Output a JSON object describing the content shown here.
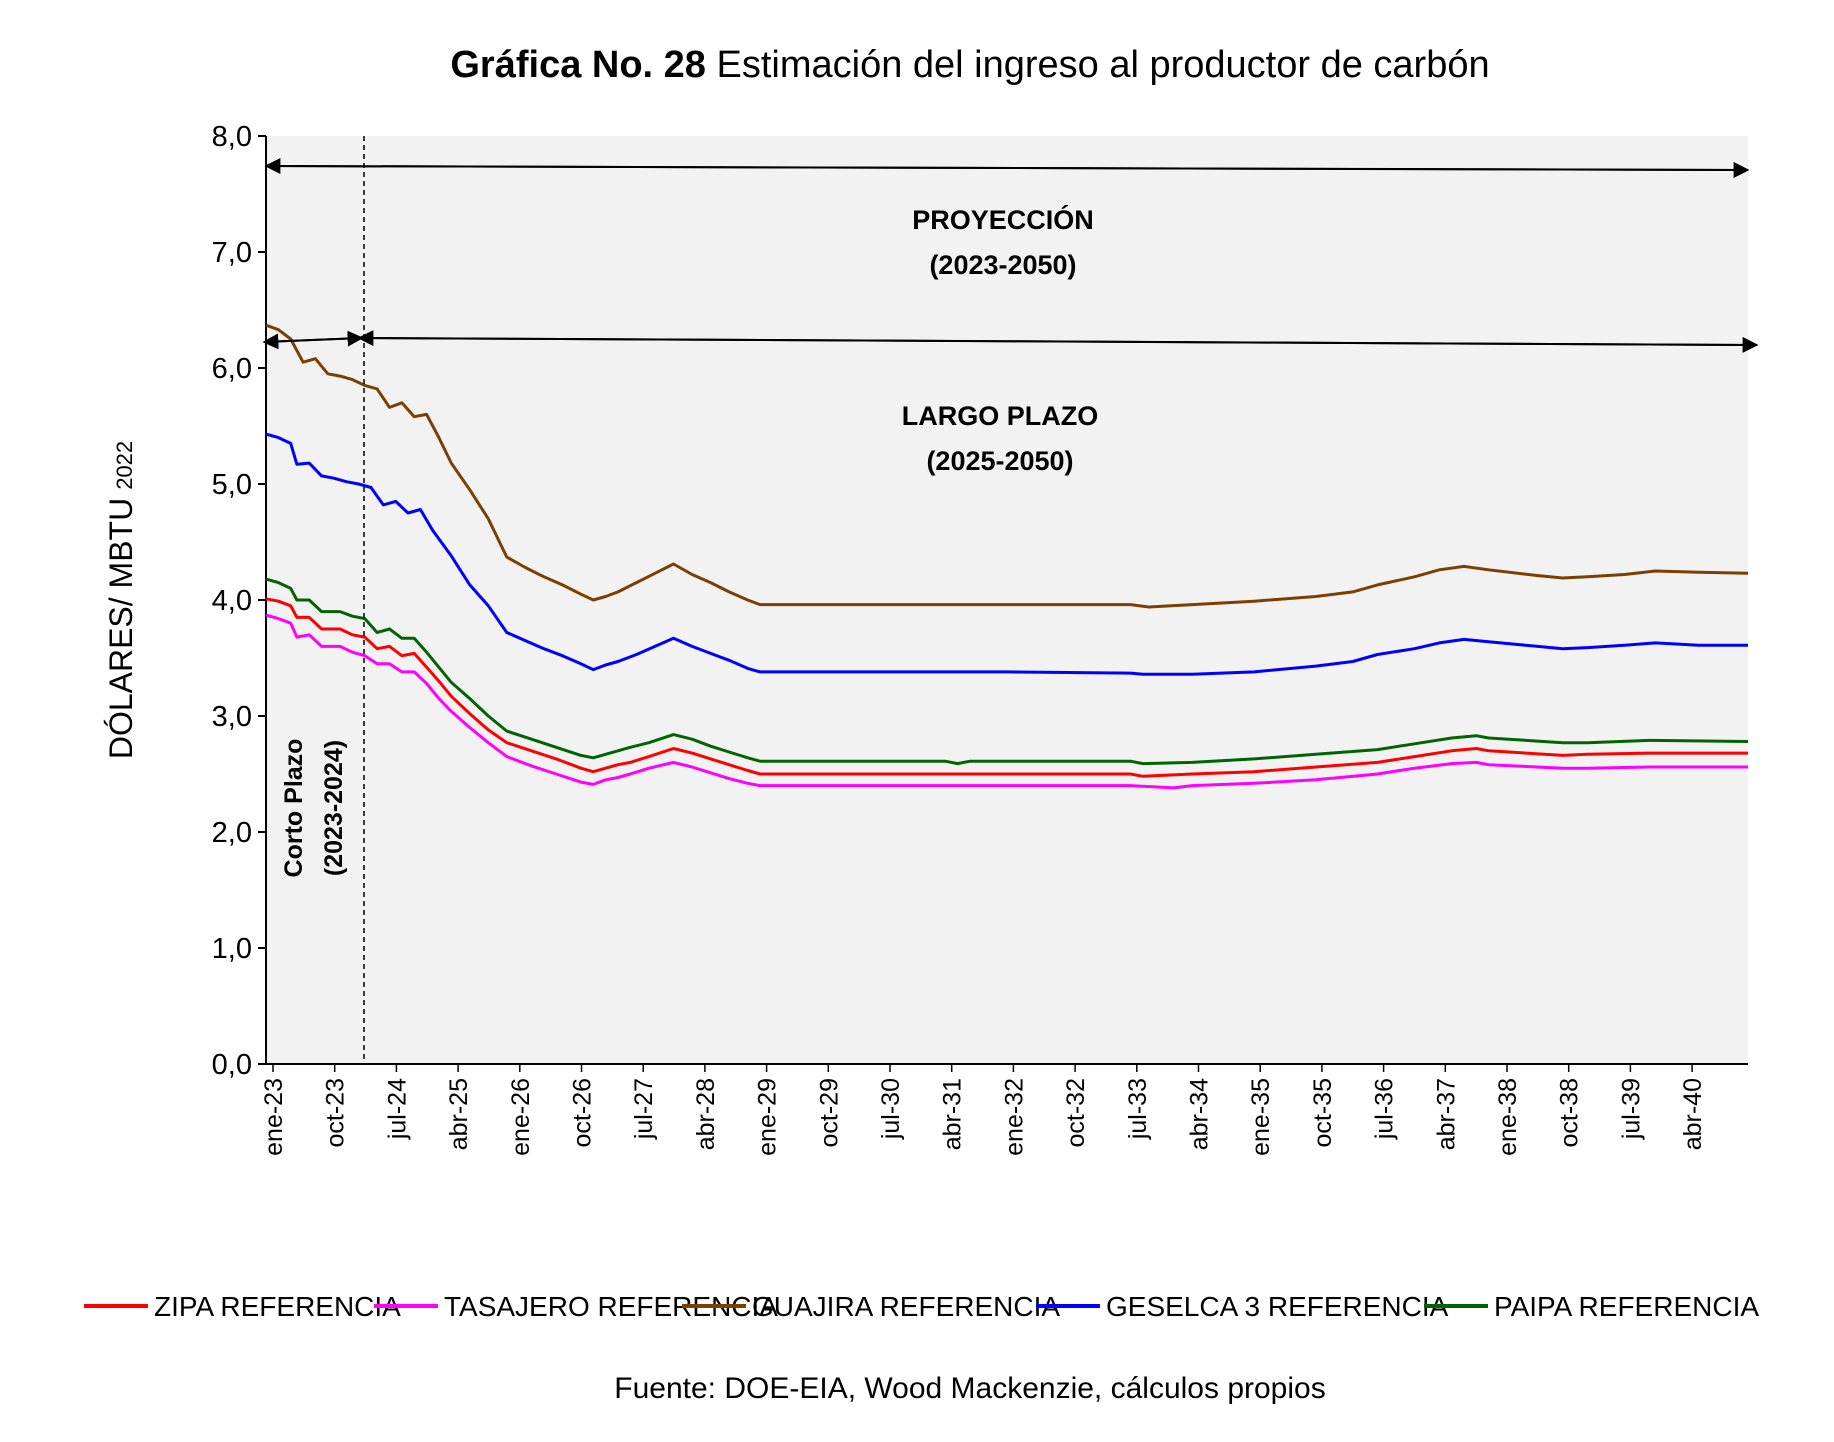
{
  "title": {
    "number": "Gráfica No. 28",
    "text": "Estimación del ingreso al productor de carbón"
  },
  "source": "Fuente: DOE-EIA, Wood Mackenzie, cálculos propios",
  "annotations": {
    "proyeccion_title": "PROYECCIÓN",
    "proyeccion_years": "(2023-2050)",
    "largo_title": "LARGO PLAZO",
    "largo_years": "(2025-2050)",
    "corto_title": "Corto Plazo",
    "corto_years": "(2023-2024)"
  },
  "chart_data": {
    "type": "line",
    "ylabel_main": "DÓLARES/ MBTU",
    "ylabel_sub": "2022",
    "ylim": [
      0,
      8
    ],
    "yticks": [
      "0,0",
      "1,0",
      "2,0",
      "3,0",
      "4,0",
      "5,0",
      "6,0",
      "7,0",
      "8,0"
    ],
    "x_tick_labels": [
      "ene-23",
      "oct-23",
      "jul-24",
      "abr-25",
      "ene-26",
      "oct-26",
      "jul-27",
      "abr-28",
      "ene-29",
      "oct-29",
      "jul-30",
      "abr-31",
      "ene-32",
      "oct-32",
      "jul-33",
      "abr-34",
      "ene-35",
      "oct-35",
      "jul-36",
      "abr-37",
      "ene-38",
      "oct-38",
      "jul-39",
      "abr-40"
    ],
    "grid": false,
    "legend_position": "bottom",
    "series": [
      {
        "name": "ZIPA REFERENCIA",
        "color": "#ff0000",
        "points": [
          [
            0,
            4.01
          ],
          [
            2,
            3.99
          ],
          [
            4,
            3.95
          ],
          [
            5,
            3.85
          ],
          [
            7,
            3.85
          ],
          [
            9,
            3.75
          ],
          [
            12,
            3.75
          ],
          [
            14,
            3.7
          ],
          [
            16,
            3.68
          ],
          [
            18,
            3.58
          ],
          [
            20,
            3.6
          ],
          [
            22,
            3.52
          ],
          [
            24,
            3.54
          ],
          [
            26,
            3.42
          ],
          [
            28,
            3.3
          ],
          [
            30,
            3.17
          ],
          [
            33,
            3.02
          ],
          [
            36,
            2.88
          ],
          [
            39,
            2.77
          ],
          [
            43,
            2.7
          ],
          [
            47,
            2.63
          ],
          [
            51,
            2.55
          ],
          [
            53,
            2.52
          ],
          [
            55,
            2.55
          ],
          [
            57,
            2.58
          ],
          [
            59,
            2.6
          ],
          [
            62,
            2.65
          ],
          [
            66,
            2.72
          ],
          [
            69,
            2.68
          ],
          [
            72,
            2.63
          ],
          [
            75,
            2.58
          ],
          [
            78,
            2.53
          ],
          [
            80,
            2.5
          ],
          [
            82,
            2.5
          ],
          [
            100,
            2.5
          ],
          [
            110,
            2.5
          ],
          [
            120,
            2.5
          ],
          [
            130,
            2.5
          ],
          [
            140,
            2.5
          ],
          [
            142,
            2.48
          ],
          [
            150,
            2.5
          ],
          [
            160,
            2.52
          ],
          [
            170,
            2.56
          ],
          [
            180,
            2.6
          ],
          [
            186,
            2.65
          ],
          [
            192,
            2.7
          ],
          [
            196,
            2.72
          ],
          [
            198,
            2.7
          ],
          [
            210,
            2.66
          ],
          [
            214,
            2.67
          ],
          [
            224,
            2.68
          ],
          [
            240,
            2.68
          ]
        ]
      },
      {
        "name": "TASAJERO REFERENCIA",
        "color": "#ff00ff",
        "points": [
          [
            0,
            3.87
          ],
          [
            2,
            3.84
          ],
          [
            4,
            3.8
          ],
          [
            5,
            3.68
          ],
          [
            7,
            3.7
          ],
          [
            9,
            3.6
          ],
          [
            12,
            3.6
          ],
          [
            14,
            3.55
          ],
          [
            16,
            3.52
          ],
          [
            18,
            3.45
          ],
          [
            20,
            3.45
          ],
          [
            22,
            3.38
          ],
          [
            24,
            3.38
          ],
          [
            26,
            3.28
          ],
          [
            28,
            3.15
          ],
          [
            30,
            3.04
          ],
          [
            33,
            2.9
          ],
          [
            36,
            2.77
          ],
          [
            39,
            2.65
          ],
          [
            43,
            2.57
          ],
          [
            47,
            2.5
          ],
          [
            51,
            2.43
          ],
          [
            53,
            2.41
          ],
          [
            55,
            2.45
          ],
          [
            57,
            2.47
          ],
          [
            59,
            2.5
          ],
          [
            62,
            2.55
          ],
          [
            66,
            2.6
          ],
          [
            69,
            2.56
          ],
          [
            72,
            2.51
          ],
          [
            75,
            2.46
          ],
          [
            78,
            2.42
          ],
          [
            80,
            2.4
          ],
          [
            82,
            2.4
          ],
          [
            100,
            2.4
          ],
          [
            120,
            2.4
          ],
          [
            140,
            2.4
          ],
          [
            147,
            2.38
          ],
          [
            150,
            2.4
          ],
          [
            160,
            2.42
          ],
          [
            170,
            2.45
          ],
          [
            180,
            2.5
          ],
          [
            186,
            2.55
          ],
          [
            192,
            2.59
          ],
          [
            196,
            2.6
          ],
          [
            198,
            2.58
          ],
          [
            210,
            2.55
          ],
          [
            214,
            2.55
          ],
          [
            224,
            2.56
          ],
          [
            240,
            2.56
          ]
        ]
      },
      {
        "name": "GUAJIRA REFERENCIA",
        "color": "#7b3f00",
        "points": [
          [
            0,
            6.37
          ],
          [
            2,
            6.33
          ],
          [
            4,
            6.25
          ],
          [
            6,
            6.05
          ],
          [
            8,
            6.08
          ],
          [
            10,
            5.95
          ],
          [
            12,
            5.93
          ],
          [
            14,
            5.9
          ],
          [
            16,
            5.85
          ],
          [
            18,
            5.82
          ],
          [
            20,
            5.66
          ],
          [
            22,
            5.7
          ],
          [
            24,
            5.58
          ],
          [
            26,
            5.6
          ],
          [
            28,
            5.4
          ],
          [
            30,
            5.18
          ],
          [
            33,
            4.95
          ],
          [
            36,
            4.7
          ],
          [
            39,
            4.37
          ],
          [
            42,
            4.28
          ],
          [
            45,
            4.2
          ],
          [
            48,
            4.13
          ],
          [
            51,
            4.05
          ],
          [
            53,
            4.0
          ],
          [
            55,
            4.03
          ],
          [
            57,
            4.07
          ],
          [
            60,
            4.15
          ],
          [
            63,
            4.23
          ],
          [
            66,
            4.31
          ],
          [
            69,
            4.22
          ],
          [
            72,
            4.15
          ],
          [
            75,
            4.07
          ],
          [
            78,
            4.0
          ],
          [
            80,
            3.96
          ],
          [
            82,
            3.96
          ],
          [
            100,
            3.96
          ],
          [
            120,
            3.96
          ],
          [
            140,
            3.96
          ],
          [
            143,
            3.94
          ],
          [
            150,
            3.96
          ],
          [
            160,
            3.99
          ],
          [
            170,
            4.03
          ],
          [
            176,
            4.07
          ],
          [
            180,
            4.13
          ],
          [
            186,
            4.2
          ],
          [
            190,
            4.26
          ],
          [
            194,
            4.29
          ],
          [
            198,
            4.26
          ],
          [
            206,
            4.21
          ],
          [
            210,
            4.19
          ],
          [
            214,
            4.2
          ],
          [
            220,
            4.22
          ],
          [
            225,
            4.25
          ],
          [
            232,
            4.24
          ],
          [
            240,
            4.23
          ]
        ]
      },
      {
        "name": "GESELCA 3 REFERENCIA",
        "color": "#0000ff",
        "points": [
          [
            0,
            5.43
          ],
          [
            2,
            5.4
          ],
          [
            4,
            5.35
          ],
          [
            5,
            5.17
          ],
          [
            7,
            5.18
          ],
          [
            9,
            5.07
          ],
          [
            11,
            5.05
          ],
          [
            13,
            5.02
          ],
          [
            15,
            5.0
          ],
          [
            17,
            4.97
          ],
          [
            19,
            4.82
          ],
          [
            21,
            4.85
          ],
          [
            23,
            4.75
          ],
          [
            25,
            4.78
          ],
          [
            27,
            4.6
          ],
          [
            30,
            4.38
          ],
          [
            33,
            4.13
          ],
          [
            36,
            3.95
          ],
          [
            39,
            3.72
          ],
          [
            42,
            3.65
          ],
          [
            45,
            3.58
          ],
          [
            48,
            3.52
          ],
          [
            51,
            3.45
          ],
          [
            53,
            3.4
          ],
          [
            55,
            3.44
          ],
          [
            57,
            3.47
          ],
          [
            60,
            3.53
          ],
          [
            63,
            3.6
          ],
          [
            66,
            3.67
          ],
          [
            69,
            3.6
          ],
          [
            72,
            3.54
          ],
          [
            75,
            3.48
          ],
          [
            78,
            3.41
          ],
          [
            80,
            3.38
          ],
          [
            82,
            3.38
          ],
          [
            100,
            3.38
          ],
          [
            120,
            3.38
          ],
          [
            140,
            3.37
          ],
          [
            142,
            3.36
          ],
          [
            150,
            3.36
          ],
          [
            160,
            3.38
          ],
          [
            170,
            3.43
          ],
          [
            176,
            3.47
          ],
          [
            180,
            3.53
          ],
          [
            186,
            3.58
          ],
          [
            190,
            3.63
          ],
          [
            194,
            3.66
          ],
          [
            198,
            3.64
          ],
          [
            206,
            3.6
          ],
          [
            210,
            3.58
          ],
          [
            214,
            3.59
          ],
          [
            220,
            3.61
          ],
          [
            225,
            3.63
          ],
          [
            232,
            3.61
          ],
          [
            240,
            3.61
          ]
        ]
      },
      {
        "name": "PAIPA REFERENCIA",
        "color": "#006400",
        "points": [
          [
            0,
            4.18
          ],
          [
            2,
            4.15
          ],
          [
            4,
            4.1
          ],
          [
            5,
            4.0
          ],
          [
            7,
            4.0
          ],
          [
            9,
            3.9
          ],
          [
            12,
            3.9
          ],
          [
            14,
            3.86
          ],
          [
            16,
            3.84
          ],
          [
            18,
            3.72
          ],
          [
            20,
            3.75
          ],
          [
            22,
            3.67
          ],
          [
            24,
            3.67
          ],
          [
            26,
            3.55
          ],
          [
            28,
            3.42
          ],
          [
            30,
            3.29
          ],
          [
            33,
            3.15
          ],
          [
            36,
            3.0
          ],
          [
            39,
            2.87
          ],
          [
            43,
            2.8
          ],
          [
            47,
            2.73
          ],
          [
            51,
            2.66
          ],
          [
            53,
            2.64
          ],
          [
            55,
            2.67
          ],
          [
            57,
            2.7
          ],
          [
            59,
            2.73
          ],
          [
            62,
            2.77
          ],
          [
            66,
            2.84
          ],
          [
            69,
            2.8
          ],
          [
            72,
            2.74
          ],
          [
            75,
            2.69
          ],
          [
            78,
            2.64
          ],
          [
            80,
            2.61
          ],
          [
            82,
            2.61
          ],
          [
            100,
            2.61
          ],
          [
            110,
            2.61
          ],
          [
            112,
            2.59
          ],
          [
            114,
            2.61
          ],
          [
            120,
            2.61
          ],
          [
            130,
            2.61
          ],
          [
            140,
            2.61
          ],
          [
            142,
            2.59
          ],
          [
            150,
            2.6
          ],
          [
            160,
            2.63
          ],
          [
            170,
            2.67
          ],
          [
            180,
            2.71
          ],
          [
            186,
            2.76
          ],
          [
            192,
            2.81
          ],
          [
            196,
            2.83
          ],
          [
            198,
            2.81
          ],
          [
            210,
            2.77
          ],
          [
            214,
            2.77
          ],
          [
            224,
            2.79
          ],
          [
            240,
            2.78
          ]
        ]
      }
    ]
  }
}
